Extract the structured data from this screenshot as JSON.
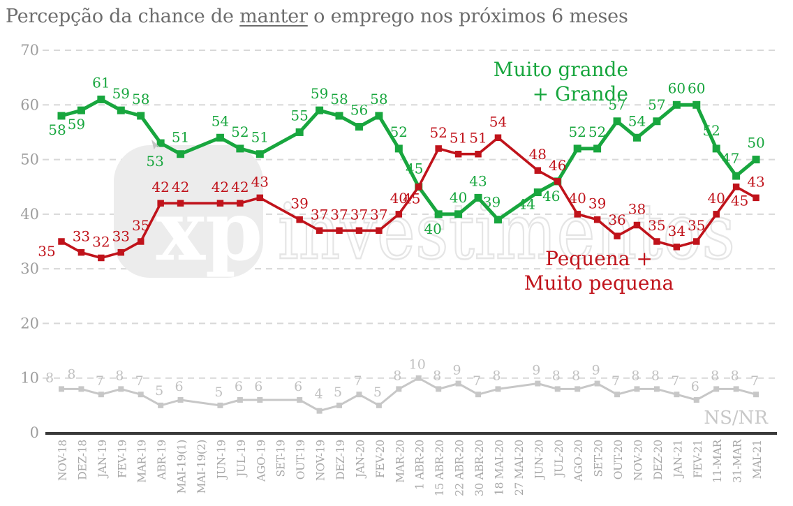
{
  "title": {
    "text_before": "Percepção da chance de ",
    "text_underlined": "manter",
    "text_after": " o emprego nos próximos 6 meses"
  },
  "legends": {
    "positive": {
      "lines": [
        "Muito grande",
        "+ Grande"
      ],
      "color": "#18a63e"
    },
    "negative": {
      "lines": [
        "Pequena +",
        "Muito pequena"
      ],
      "color": "#c0131b"
    },
    "nsnr": {
      "label": "NS/NR",
      "color": "#c8c8c8"
    }
  },
  "watermark": {
    "logo_text": "xp",
    "name_text": "investimentos"
  },
  "chart_data": {
    "type": "line",
    "title": "Percepção da chance de manter o emprego nos próximos 6 meses",
    "categories": [
      "NOV-18",
      "DEZ-18",
      "JAN-19",
      "FEV-19",
      "MAR-19",
      "ABR-19",
      "MAI-19(1)",
      "MAI-19(2)",
      "JUN-19",
      "JUL-19",
      "AGO-19",
      "SET-19",
      "OUT-19",
      "NOV-19",
      "DEZ-19",
      "JAN-20",
      "FEV-20",
      "MAR-20",
      "1 ABR-20",
      "15 ABR-20",
      "22 ABR-20",
      "30 ABR-20",
      "18 MAI-20",
      "27 MAI-20",
      "JUN-20",
      "JUL-20",
      "AGO-20",
      "SET-20",
      "OUT-20",
      "NOV-20",
      "DEZ-20",
      "JAN-21",
      "FEV-21",
      "11-MAR",
      "31-MAR",
      "MAI-21"
    ],
    "series": [
      {
        "name": "Muito grande + Grande",
        "color": "#18a63e",
        "values": [
          58,
          59,
          61,
          59,
          58,
          53,
          51,
          null,
          54,
          52,
          51,
          null,
          55,
          59,
          58,
          56,
          58,
          52,
          45,
          40,
          40,
          43,
          39,
          null,
          44,
          46,
          52,
          52,
          57,
          54,
          57,
          60,
          60,
          52,
          47,
          50
        ]
      },
      {
        "name": "Pequena + Muito pequena",
        "color": "#c0131b",
        "values": [
          35,
          33,
          32,
          33,
          35,
          42,
          42,
          null,
          42,
          42,
          43,
          null,
          39,
          37,
          37,
          37,
          37,
          40,
          45,
          52,
          51,
          51,
          54,
          null,
          48,
          46,
          40,
          39,
          36,
          38,
          35,
          34,
          35,
          40,
          45,
          43
        ]
      },
      {
        "name": "NS/NR",
        "color": "#c7c7c7",
        "values": [
          8,
          8,
          7,
          8,
          7,
          5,
          6,
          null,
          5,
          6,
          6,
          null,
          6,
          4,
          5,
          7,
          5,
          8,
          10,
          8,
          9,
          7,
          8,
          null,
          9,
          8,
          8,
          9,
          7,
          8,
          8,
          7,
          6,
          8,
          8,
          7
        ]
      }
    ],
    "ylim": [
      0,
      70
    ],
    "yticks": [
      0,
      10,
      20,
      30,
      40,
      50,
      60,
      70
    ],
    "grid": "horizontal-dashed",
    "legend_position": "inline-annotations"
  }
}
